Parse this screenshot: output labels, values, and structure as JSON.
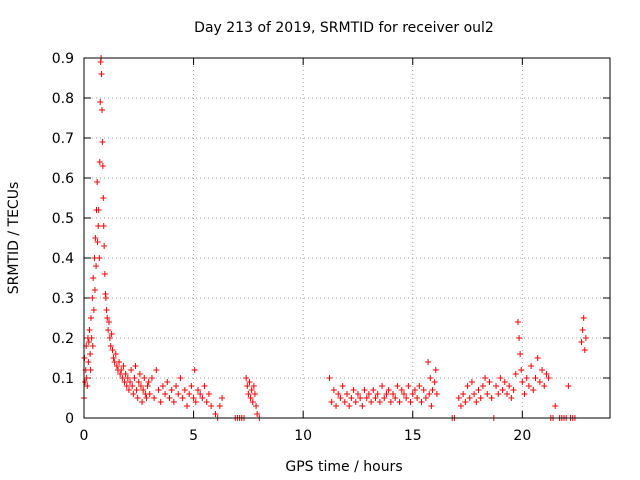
{
  "chart_data": {
    "type": "scatter",
    "title": "Day 213 of 2019, SRMTID for receiver oul2",
    "xlabel": "GPS time / hours",
    "ylabel": "SRMTID / TECUs",
    "xlim": [
      0,
      24
    ],
    "ylim": [
      0,
      0.9
    ],
    "xticks": [
      0,
      5,
      10,
      15,
      20
    ],
    "yticks": [
      0,
      0.1,
      0.2,
      0.3,
      0.4,
      0.5,
      0.6,
      0.7,
      0.8,
      0.9
    ],
    "xtick_labels": [
      "0",
      "5",
      "10",
      "15",
      "20"
    ],
    "ytick_labels": [
      "0",
      "0.1",
      "0.2",
      "0.3",
      "0.4",
      "0.5",
      "0.6",
      "0.7",
      "0.8",
      "0.9"
    ],
    "grid": true,
    "marker": "+",
    "color": "#ff0000",
    "series": [
      {
        "name": "SRMTID",
        "points": [
          [
            0.0,
            0.05
          ],
          [
            0.02,
            0.15
          ],
          [
            0.05,
            0.09
          ],
          [
            0.08,
            0.12
          ],
          [
            0.1,
            0.18
          ],
          [
            0.12,
            0.1
          ],
          [
            0.15,
            0.08
          ],
          [
            0.18,
            0.2
          ],
          [
            0.2,
            0.14
          ],
          [
            0.22,
            0.19
          ],
          [
            0.25,
            0.22
          ],
          [
            0.28,
            0.16
          ],
          [
            0.3,
            0.12
          ],
          [
            0.32,
            0.25
          ],
          [
            0.35,
            0.2
          ],
          [
            0.38,
            0.3
          ],
          [
            0.4,
            0.18
          ],
          [
            0.42,
            0.35
          ],
          [
            0.45,
            0.27
          ],
          [
            0.48,
            0.4
          ],
          [
            0.5,
            0.32
          ],
          [
            0.52,
            0.45
          ],
          [
            0.55,
            0.38
          ],
          [
            0.57,
            0.52
          ],
          [
            0.6,
            0.59
          ],
          [
            0.62,
            0.44
          ],
          [
            0.65,
            0.48
          ],
          [
            0.67,
            0.52
          ],
          [
            0.7,
            0.4
          ],
          [
            0.72,
            0.64
          ],
          [
            0.74,
            0.79
          ],
          [
            0.76,
            0.89
          ],
          [
            0.78,
            0.9
          ],
          [
            0.8,
            0.86
          ],
          [
            0.82,
            0.77
          ],
          [
            0.84,
            0.69
          ],
          [
            0.86,
            0.63
          ],
          [
            0.88,
            0.55
          ],
          [
            0.9,
            0.48
          ],
          [
            0.92,
            0.43
          ],
          [
            0.95,
            0.36
          ],
          [
            0.98,
            0.31
          ],
          [
            1.0,
            0.3
          ],
          [
            1.03,
            0.27
          ],
          [
            1.06,
            0.25
          ],
          [
            1.1,
            0.22
          ],
          [
            1.14,
            0.24
          ],
          [
            1.18,
            0.2
          ],
          [
            1.22,
            0.18
          ],
          [
            1.26,
            0.21
          ],
          [
            1.3,
            0.17
          ],
          [
            1.35,
            0.15
          ],
          [
            1.4,
            0.14
          ],
          [
            1.45,
            0.16
          ],
          [
            1.5,
            0.13
          ],
          [
            1.55,
            0.12
          ],
          [
            1.6,
            0.14
          ],
          [
            1.65,
            0.11
          ],
          [
            1.7,
            0.12
          ],
          [
            1.75,
            0.1
          ],
          [
            1.8,
            0.13
          ],
          [
            1.85,
            0.09
          ],
          [
            1.9,
            0.11
          ],
          [
            1.95,
            0.08
          ],
          [
            2.0,
            0.1
          ],
          [
            2.05,
            0.07
          ],
          [
            2.1,
            0.09
          ],
          [
            2.15,
            0.12
          ],
          [
            2.2,
            0.08
          ],
          [
            2.25,
            0.06
          ],
          [
            2.3,
            0.1
          ],
          [
            2.35,
            0.13
          ],
          [
            2.4,
            0.07
          ],
          [
            2.45,
            0.05
          ],
          [
            2.5,
            0.09
          ],
          [
            2.55,
            0.11
          ],
          [
            2.6,
            0.08
          ],
          [
            2.65,
            0.04
          ],
          [
            2.7,
            0.07
          ],
          [
            2.75,
            0.1
          ],
          [
            2.8,
            0.06
          ],
          [
            2.85,
            0.05
          ],
          [
            2.9,
            0.08
          ],
          [
            2.95,
            0.09
          ],
          [
            3.0,
            0.06
          ],
          [
            3.1,
            0.1
          ],
          [
            3.2,
            0.05
          ],
          [
            3.3,
            0.12
          ],
          [
            3.4,
            0.07
          ],
          [
            3.5,
            0.04
          ],
          [
            3.6,
            0.08
          ],
          [
            3.7,
            0.06
          ],
          [
            3.8,
            0.09
          ],
          [
            3.9,
            0.05
          ],
          [
            4.0,
            0.07
          ],
          [
            4.1,
            0.04
          ],
          [
            4.2,
            0.08
          ],
          [
            4.3,
            0.06
          ],
          [
            4.4,
            0.1
          ],
          [
            4.5,
            0.05
          ],
          [
            4.6,
            0.07
          ],
          [
            4.7,
            0.03
          ],
          [
            4.8,
            0.06
          ],
          [
            4.9,
            0.08
          ],
          [
            5.0,
            0.05
          ],
          [
            5.05,
            0.12
          ],
          [
            5.1,
            0.04
          ],
          [
            5.2,
            0.07
          ],
          [
            5.3,
            0.06
          ],
          [
            5.4,
            0.05
          ],
          [
            5.5,
            0.08
          ],
          [
            5.6,
            0.04
          ],
          [
            5.7,
            0.06
          ],
          [
            5.8,
            0.03
          ],
          [
            6.0,
            0.01
          ],
          [
            6.1,
            0.0
          ],
          [
            6.2,
            0.03
          ],
          [
            6.3,
            0.05
          ],
          [
            6.9,
            0.0
          ],
          [
            7.0,
            0.0
          ],
          [
            7.1,
            0.0
          ],
          [
            7.2,
            0.0
          ],
          [
            7.3,
            0.0
          ],
          [
            7.4,
            0.1
          ],
          [
            7.45,
            0.08
          ],
          [
            7.5,
            0.06
          ],
          [
            7.55,
            0.09
          ],
          [
            7.6,
            0.05
          ],
          [
            7.65,
            0.07
          ],
          [
            7.7,
            0.04
          ],
          [
            7.75,
            0.08
          ],
          [
            7.8,
            0.06
          ],
          [
            7.85,
            0.03
          ],
          [
            7.9,
            0.01
          ],
          [
            8.0,
            0.0
          ],
          [
            11.2,
            0.1
          ],
          [
            11.3,
            0.04
          ],
          [
            11.4,
            0.07
          ],
          [
            11.5,
            0.03
          ],
          [
            11.6,
            0.06
          ],
          [
            11.7,
            0.05
          ],
          [
            11.8,
            0.08
          ],
          [
            11.9,
            0.04
          ],
          [
            12.0,
            0.06
          ],
          [
            12.1,
            0.03
          ],
          [
            12.2,
            0.05
          ],
          [
            12.3,
            0.07
          ],
          [
            12.4,
            0.04
          ],
          [
            12.5,
            0.06
          ],
          [
            12.6,
            0.05
          ],
          [
            12.7,
            0.03
          ],
          [
            12.8,
            0.07
          ],
          [
            12.9,
            0.05
          ],
          [
            13.0,
            0.06
          ],
          [
            13.1,
            0.04
          ],
          [
            13.2,
            0.07
          ],
          [
            13.3,
            0.05
          ],
          [
            13.4,
            0.06
          ],
          [
            13.5,
            0.04
          ],
          [
            13.6,
            0.08
          ],
          [
            13.7,
            0.05
          ],
          [
            13.8,
            0.06
          ],
          [
            13.9,
            0.07
          ],
          [
            14.0,
            0.04
          ],
          [
            14.1,
            0.06
          ],
          [
            14.2,
            0.05
          ],
          [
            14.3,
            0.08
          ],
          [
            14.4,
            0.04
          ],
          [
            14.5,
            0.07
          ],
          [
            14.6,
            0.06
          ],
          [
            14.7,
            0.05
          ],
          [
            14.8,
            0.08
          ],
          [
            14.9,
            0.04
          ],
          [
            15.0,
            0.06
          ],
          [
            15.1,
            0.07
          ],
          [
            15.2,
            0.05
          ],
          [
            15.3,
            0.08
          ],
          [
            15.4,
            0.04
          ],
          [
            15.5,
            0.07
          ],
          [
            15.6,
            0.05
          ],
          [
            15.7,
            0.14
          ],
          [
            15.75,
            0.06
          ],
          [
            15.8,
            0.1
          ],
          [
            15.85,
            0.03
          ],
          [
            15.9,
            0.07
          ],
          [
            16.0,
            0.09
          ],
          [
            16.05,
            0.12
          ],
          [
            16.1,
            0.06
          ],
          [
            16.8,
            0.0
          ],
          [
            16.9,
            0.0
          ],
          [
            17.1,
            0.05
          ],
          [
            17.2,
            0.03
          ],
          [
            17.3,
            0.06
          ],
          [
            17.4,
            0.04
          ],
          [
            17.5,
            0.08
          ],
          [
            17.6,
            0.05
          ],
          [
            17.7,
            0.09
          ],
          [
            17.8,
            0.06
          ],
          [
            17.9,
            0.04
          ],
          [
            18.0,
            0.07
          ],
          [
            18.1,
            0.05
          ],
          [
            18.2,
            0.08
          ],
          [
            18.3,
            0.1
          ],
          [
            18.4,
            0.06
          ],
          [
            18.5,
            0.09
          ],
          [
            18.6,
            0.05
          ],
          [
            18.7,
            0.0
          ],
          [
            18.8,
            0.08
          ],
          [
            18.9,
            0.06
          ],
          [
            19.0,
            0.1
          ],
          [
            19.1,
            0.07
          ],
          [
            19.2,
            0.09
          ],
          [
            19.3,
            0.06
          ],
          [
            19.4,
            0.08
          ],
          [
            19.5,
            0.05
          ],
          [
            19.6,
            0.07
          ],
          [
            19.7,
            0.11
          ],
          [
            19.8,
            0.24
          ],
          [
            19.85,
            0.2
          ],
          [
            19.9,
            0.16
          ],
          [
            19.95,
            0.12
          ],
          [
            20.0,
            0.09
          ],
          [
            20.1,
            0.06
          ],
          [
            20.2,
            0.1
          ],
          [
            20.3,
            0.08
          ],
          [
            20.4,
            0.13
          ],
          [
            20.5,
            0.07
          ],
          [
            20.6,
            0.1
          ],
          [
            20.7,
            0.15
          ],
          [
            20.8,
            0.09
          ],
          [
            20.9,
            0.12
          ],
          [
            21.0,
            0.08
          ],
          [
            21.1,
            0.11
          ],
          [
            21.2,
            0.1
          ],
          [
            21.3,
            0.0
          ],
          [
            21.4,
            0.0
          ],
          [
            21.5,
            0.03
          ],
          [
            21.7,
            0.0
          ],
          [
            21.8,
            0.0
          ],
          [
            21.9,
            0.0
          ],
          [
            22.0,
            0.0
          ],
          [
            22.1,
            0.08
          ],
          [
            22.2,
            0.0
          ],
          [
            22.3,
            0.0
          ],
          [
            22.4,
            0.0
          ],
          [
            22.7,
            0.19
          ],
          [
            22.75,
            0.22
          ],
          [
            22.8,
            0.25
          ],
          [
            22.85,
            0.17
          ],
          [
            22.9,
            0.2
          ]
        ]
      }
    ]
  }
}
